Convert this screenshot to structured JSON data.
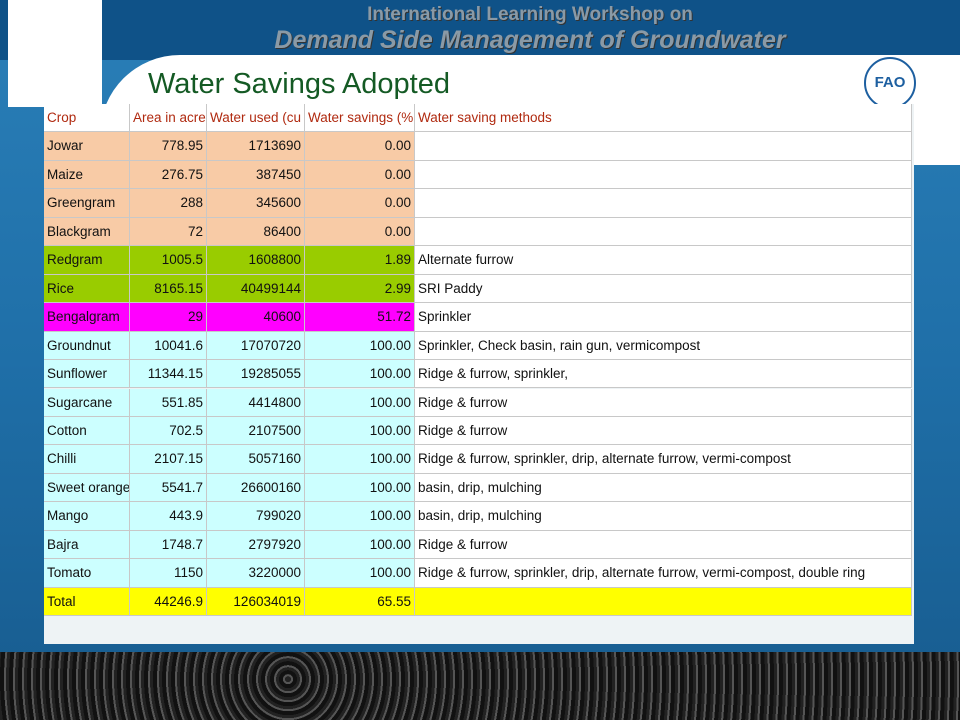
{
  "header": {
    "line1": "International Learning Workshop on",
    "line2": "Demand Side Management of Groundwater"
  },
  "title": "Water Savings Adopted",
  "logo": "FAO",
  "table": {
    "columns": [
      "Crop",
      "Area in acre",
      "Water used (cu",
      "Water savings (%",
      "Water saving methods"
    ],
    "rows": [
      {
        "color": "#f8cba6",
        "cells": [
          "Jowar",
          "778.95",
          "1713690",
          "0.00",
          ""
        ]
      },
      {
        "color": "#f8cba6",
        "cells": [
          "Maize",
          "276.75",
          "387450",
          "0.00",
          ""
        ]
      },
      {
        "color": "#f8cba6",
        "cells": [
          "Greengram",
          "288",
          "345600",
          "0.00",
          ""
        ]
      },
      {
        "color": "#f8cba6",
        "cells": [
          "Blackgram",
          "72",
          "86400",
          "0.00",
          ""
        ]
      },
      {
        "color": "#99cc00",
        "cells": [
          "Redgram",
          "1005.5",
          "1608800",
          "1.89",
          "Alternate furrow"
        ]
      },
      {
        "color": "#99cc00",
        "cells": [
          "Rice",
          "8165.15",
          "40499144",
          "2.99",
          "SRI Paddy"
        ]
      },
      {
        "color": "#ff00ff",
        "cells": [
          "Bengalgram",
          "29",
          "40600",
          "51.72",
          "Sprinkler"
        ]
      },
      {
        "color": "#ccffff",
        "cells": [
          "Groundnut",
          "10041.6",
          "17070720",
          "100.00",
          "Sprinkler, Check basin, rain gun, vermicompost"
        ]
      },
      {
        "color": "#ccffff",
        "cells": [
          "Sunflower",
          "11344.15",
          "19285055",
          "100.00",
          "Ridge & furrow, sprinkler,"
        ]
      },
      {
        "color": "#ccffff",
        "cells": [
          "Sugarcane",
          "551.85",
          "4414800",
          "100.00",
          "Ridge & furrow"
        ]
      },
      {
        "color": "#ccffff",
        "cells": [
          "Cotton",
          "702.5",
          "2107500",
          "100.00",
          "Ridge & furrow"
        ]
      },
      {
        "color": "#ccffff",
        "cells": [
          "Chilli",
          "2107.15",
          "5057160",
          "100.00",
          "Ridge & furrow, sprinkler, drip, alternate furrow, vermi-compost"
        ]
      },
      {
        "color": "#ccffff",
        "cells": [
          "Sweet orange",
          "5541.7",
          "26600160",
          "100.00",
          "basin, drip, mulching"
        ]
      },
      {
        "color": "#ccffff",
        "cells": [
          "Mango",
          "443.9",
          "799020",
          "100.00",
          "basin, drip, mulching"
        ]
      },
      {
        "color": "#ccffff",
        "cells": [
          "Bajra",
          "1748.7",
          "2797920",
          "100.00",
          "Ridge & furrow"
        ]
      },
      {
        "color": "#ccffff",
        "cells": [
          "Tomato",
          "1150",
          "3220000",
          "100.00",
          "Ridge & furrow, sprinkler, drip, alternate furrow, vermi-compost, double ring"
        ]
      },
      {
        "color": "#ffff00",
        "cells": [
          "Total",
          "44246.9",
          "126034019",
          "65.55",
          ""
        ]
      }
    ]
  }
}
